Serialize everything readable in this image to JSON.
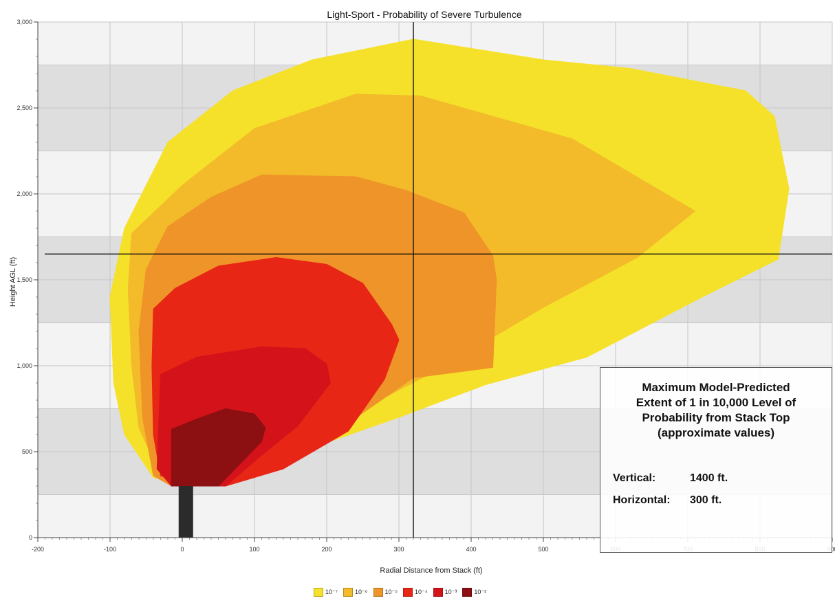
{
  "chart_data": {
    "type": "area",
    "title": "Light-Sport - Probability of Severe Turbulence",
    "xlabel": "Radial Distance from Stack (ft)",
    "ylabel": "Height AGL (ft)",
    "xlim": [
      -200,
      900
    ],
    "ylim": [
      0,
      3000
    ],
    "x_ticks": [
      "-200",
      "-100",
      "0",
      "100",
      "200",
      "300",
      "400",
      "500",
      "600",
      "700",
      "800",
      "900"
    ],
    "y_ticks": [
      "0",
      "500",
      "1,000",
      "1,500",
      "2,000",
      "2,500",
      "3,000"
    ],
    "grid": true,
    "legend_position": "bottom-center",
    "stack": {
      "x_range": [
        -5,
        15
      ],
      "top": 300,
      "color": "#2b2b2b"
    },
    "crosshair": {
      "x": 320,
      "y": 1650
    },
    "series": [
      {
        "name": "10⁻⁷",
        "color": "#f5e12a",
        "points": [
          [
            -80,
            1800
          ],
          [
            -20,
            2300
          ],
          [
            70,
            2600
          ],
          [
            180,
            2780
          ],
          [
            320,
            2900
          ],
          [
            500,
            2780
          ],
          [
            620,
            2730
          ],
          [
            780,
            2600
          ],
          [
            820,
            2450
          ],
          [
            840,
            2030
          ],
          [
            825,
            1620
          ],
          [
            720,
            1400
          ],
          [
            560,
            1050
          ],
          [
            420,
            890
          ],
          [
            300,
            700
          ],
          [
            150,
            480
          ],
          [
            60,
            300
          ],
          [
            20,
            300
          ],
          [
            -40,
            350
          ],
          [
            -80,
            600
          ],
          [
            -95,
            900
          ],
          [
            -100,
            1400
          ]
        ]
      },
      {
        "name": "10⁻⁶",
        "color": "#f3ba2a",
        "points": [
          [
            -70,
            1770
          ],
          [
            0,
            2050
          ],
          [
            100,
            2380
          ],
          [
            240,
            2580
          ],
          [
            330,
            2570
          ],
          [
            540,
            2320
          ],
          [
            710,
            1900
          ],
          [
            630,
            1630
          ],
          [
            500,
            1340
          ],
          [
            360,
            990
          ],
          [
            250,
            750
          ],
          [
            120,
            490
          ],
          [
            55,
            300
          ],
          [
            25,
            300
          ],
          [
            -30,
            360
          ],
          [
            -60,
            640
          ],
          [
            -70,
            1000
          ],
          [
            -75,
            1450
          ]
        ]
      },
      {
        "name": "10⁻⁵",
        "color": "#ef9428",
        "points": [
          [
            -50,
            1560
          ],
          [
            -20,
            1810
          ],
          [
            40,
            1980
          ],
          [
            110,
            2110
          ],
          [
            240,
            2100
          ],
          [
            310,
            2020
          ],
          [
            390,
            1890
          ],
          [
            430,
            1640
          ],
          [
            435,
            1500
          ],
          [
            430,
            990
          ],
          [
            320,
            930
          ],
          [
            200,
            580
          ],
          [
            60,
            300
          ],
          [
            -15,
            300
          ],
          [
            -40,
            360
          ],
          [
            -55,
            700
          ],
          [
            -60,
            1200
          ]
        ]
      },
      {
        "name": "10⁻⁴",
        "color": "#e82616",
        "points": [
          [
            -40,
            1330
          ],
          [
            -10,
            1450
          ],
          [
            50,
            1580
          ],
          [
            130,
            1630
          ],
          [
            200,
            1590
          ],
          [
            250,
            1480
          ],
          [
            290,
            1240
          ],
          [
            300,
            1150
          ],
          [
            280,
            920
          ],
          [
            230,
            620
          ],
          [
            140,
            400
          ],
          [
            60,
            300
          ],
          [
            15,
            300
          ],
          [
            -30,
            360
          ],
          [
            -40,
            600
          ],
          [
            -42,
            1000
          ]
        ]
      },
      {
        "name": "10⁻³",
        "color": "#d4121a",
        "points": [
          [
            -30,
            950
          ],
          [
            20,
            1050
          ],
          [
            110,
            1110
          ],
          [
            170,
            1100
          ],
          [
            200,
            1010
          ],
          [
            205,
            900
          ],
          [
            160,
            650
          ],
          [
            110,
            480
          ],
          [
            60,
            300
          ],
          [
            -15,
            300
          ],
          [
            -35,
            400
          ]
        ]
      },
      {
        "name": "10⁻²",
        "color": "#8c0f12",
        "points": [
          [
            -15,
            630
          ],
          [
            20,
            690
          ],
          [
            60,
            750
          ],
          [
            100,
            720
          ],
          [
            115,
            640
          ],
          [
            110,
            560
          ],
          [
            80,
            430
          ],
          [
            50,
            300
          ],
          [
            -15,
            300
          ]
        ]
      }
    ],
    "info_box": {
      "heading": [
        "Maximum Model-Predicted",
        "Extent of 1 in 10,000 Level of",
        "Probability from Stack Top",
        "(approximate values)"
      ],
      "rows": [
        {
          "label": "Vertical:",
          "value": "1400 ft."
        },
        {
          "label": "Horizontal:",
          "value": "300 ft."
        }
      ]
    }
  }
}
